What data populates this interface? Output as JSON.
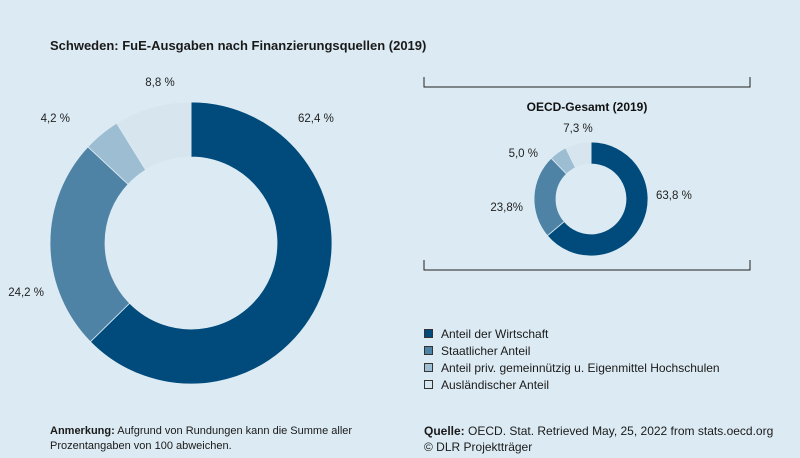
{
  "chart_data": [
    {
      "type": "pie",
      "title": "Schweden: FuE-Ausgaben nach Finanzierungsquellen (2019)",
      "categories": [
        "Anteil der Wirtschaft",
        "Staatlicher Anteil",
        "Anteil priv. gemeinnützig u. Eigenmittel Hochschulen",
        "Ausländischer Anteil"
      ],
      "values": [
        62.4,
        24.2,
        4.2,
        8.8
      ],
      "labels": [
        "62,4 %",
        "24,2 %",
        "4,2 %",
        "8,8 %"
      ],
      "colors": [
        "#004b7c",
        "#4f83a6",
        "#9cbdd2",
        "#d7e5ee"
      ]
    },
    {
      "type": "pie",
      "title": "OECD-Gesamt (2019)",
      "categories": [
        "Anteil der Wirtschaft",
        "Staatlicher Anteil",
        "Anteil priv. gemeinnützig u. Eigenmittel Hochschulen",
        "Ausländischer Anteil"
      ],
      "values": [
        63.8,
        23.8,
        5.0,
        7.3
      ],
      "labels": [
        "63,8 %",
        "23,8%",
        "5,0 %",
        "7,3 %"
      ],
      "colors": [
        "#004b7c",
        "#4f83a6",
        "#9cbdd2",
        "#d7e5ee"
      ]
    }
  ],
  "legend": {
    "items": [
      {
        "label": "Anteil der Wirtschaft",
        "color": "#004b7c"
      },
      {
        "label": "Staatlicher Anteil",
        "color": "#4f83a6"
      },
      {
        "label": "Anteil priv. gemeinnützig u. Eigenmittel Hochschulen",
        "color": "#9cbdd2"
      },
      {
        "label": "Ausländischer Anteil",
        "color": "#d7e5ee"
      }
    ]
  },
  "note": {
    "label": "Anmerkung:",
    "text": " Aufgrund von Rundungen kann die Summe aller Prozentangaben von 100 abweichen."
  },
  "source": {
    "label": "Quelle:",
    "text": " OECD. Stat. Retrieved May, 25, 2022 from stats.oecd.org",
    "copyright": "© DLR Projektträger"
  }
}
